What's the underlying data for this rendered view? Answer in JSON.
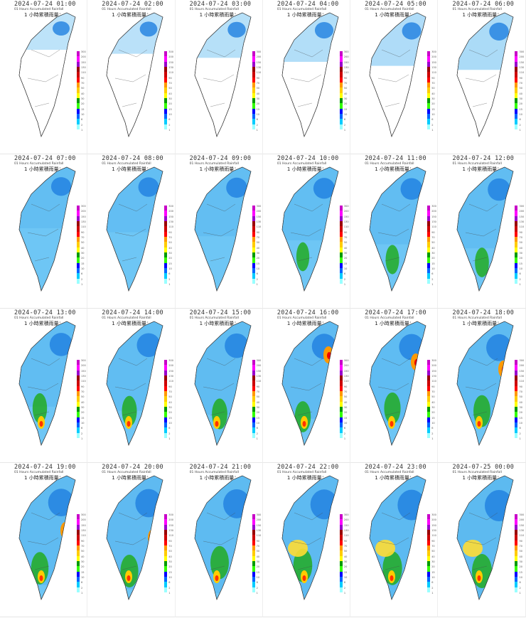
{
  "subtitle": "01 Hours Accumulated Rainfall",
  "legend_title": "1 小時累積雨量：",
  "colorbar_labels": [
    "300",
    "200",
    "150",
    "130",
    "110",
    "90",
    "70",
    "50",
    "40",
    "30",
    "20",
    "15",
    "10",
    "6",
    "2",
    "1"
  ],
  "colorbar_colors": [
    "#c800c8",
    "#ff00ff",
    "#9900cc",
    "#990000",
    "#cc0000",
    "#ff0000",
    "#ff9900",
    "#ffcc00",
    "#ffff00",
    "#009900",
    "#33ff00",
    "#0000ff",
    "#0066ff",
    "#00ccff",
    "#99ffff"
  ],
  "panels": [
    {
      "time": "2024-07-24 01:00"
    },
    {
      "time": "2024-07-24 02:00"
    },
    {
      "time": "2024-07-24 03:00"
    },
    {
      "time": "2024-07-24 04:00"
    },
    {
      "time": "2024-07-24 05:00"
    },
    {
      "time": "2024-07-24 06:00"
    },
    {
      "time": "2024-07-24 07:00"
    },
    {
      "time": "2024-07-24 08:00"
    },
    {
      "time": "2024-07-24 09:00"
    },
    {
      "time": "2024-07-24 10:00"
    },
    {
      "time": "2024-07-24 11:00"
    },
    {
      "time": "2024-07-24 12:00"
    },
    {
      "time": "2024-07-24 13:00"
    },
    {
      "time": "2024-07-24 14:00"
    },
    {
      "time": "2024-07-24 15:00"
    },
    {
      "time": "2024-07-24 16:00"
    },
    {
      "time": "2024-07-24 17:00"
    },
    {
      "time": "2024-07-24 18:00"
    },
    {
      "time": "2024-07-24 19:00"
    },
    {
      "time": "2024-07-24 20:00"
    },
    {
      "time": "2024-07-24 21:00"
    },
    {
      "time": "2024-07-24 22:00"
    },
    {
      "time": "2024-07-24 23:00"
    },
    {
      "time": "2024-07-25 00:00"
    }
  ]
}
